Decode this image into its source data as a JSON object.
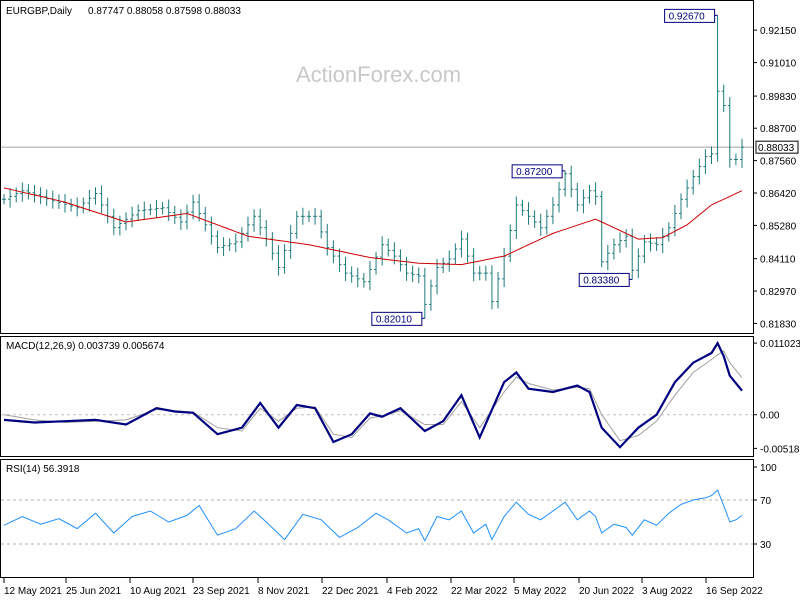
{
  "colors": {
    "bars": "#1f7a7a",
    "ma": "#cc0000",
    "macd": "#000080",
    "signal": "#a0a0a0",
    "rsi": "#1e90ff",
    "grid": "#808080",
    "callout": "#000080"
  },
  "watermark": "ActionForex.com",
  "chart_data": [
    {
      "type": "ohlc",
      "title": "EURGBP,Daily",
      "ohlc_label": "0.87747 0.88058 0.87598 0.88033",
      "last_price": "0.88033",
      "ylim": [
        0.816,
        0.93
      ],
      "yticks": [
        "0.92150",
        "0.91010",
        "0.89830",
        "0.88700",
        "0.87560",
        "0.86420",
        "0.85280",
        "0.84110",
        "0.82970",
        "0.81830"
      ],
      "xticks": [
        "12 May 2021",
        "25 Jun 2021",
        "10 Aug 2021",
        "23 Sep 2021",
        "8 Nov 2021",
        "22 Dec 2021",
        "4 Feb 2022",
        "22 Mar 2022",
        "5 May 2022",
        "20 Jun 2022",
        "3 Aug 2022",
        "16 Sep 2022"
      ],
      "annotations": [
        {
          "label": "0.92670",
          "bar": 117,
          "price": 0.9267
        },
        {
          "label": "0.87200",
          "bar": 92,
          "price": 0.872
        },
        {
          "label": "0.82010",
          "bar": 69,
          "price": 0.8201
        },
        {
          "label": "0.83380",
          "bar": 103,
          "price": 0.8338
        }
      ],
      "close_keypoints": [
        [
          0,
          0.862
        ],
        [
          3,
          0.865
        ],
        [
          8,
          0.8615
        ],
        [
          12,
          0.859
        ],
        [
          15,
          0.864
        ],
        [
          18,
          0.852
        ],
        [
          22,
          0.858
        ],
        [
          26,
          0.859
        ],
        [
          29,
          0.854
        ],
        [
          31,
          0.861
        ],
        [
          35,
          0.845
        ],
        [
          38,
          0.847
        ],
        [
          41,
          0.856
        ],
        [
          43,
          0.848
        ],
        [
          45,
          0.838
        ],
        [
          48,
          0.856
        ],
        [
          51,
          0.856
        ],
        [
          53,
          0.845
        ],
        [
          56,
          0.836
        ],
        [
          59,
          0.833
        ],
        [
          62,
          0.846
        ],
        [
          64,
          0.842
        ],
        [
          66,
          0.836
        ],
        [
          68,
          0.835
        ],
        [
          69,
          0.825
        ],
        [
          71,
          0.838
        ],
        [
          73,
          0.841
        ],
        [
          75,
          0.848
        ],
        [
          77,
          0.836
        ],
        [
          79,
          0.836
        ],
        [
          80,
          0.826
        ],
        [
          82,
          0.842
        ],
        [
          84,
          0.86
        ],
        [
          86,
          0.856
        ],
        [
          88,
          0.852
        ],
        [
          90,
          0.86
        ],
        [
          92,
          0.871
        ],
        [
          94,
          0.86
        ],
        [
          96,
          0.865
        ],
        [
          97,
          0.863
        ],
        [
          98,
          0.84
        ],
        [
          100,
          0.846
        ],
        [
          102,
          0.849
        ],
        [
          103,
          0.837
        ],
        [
          105,
          0.847
        ],
        [
          107,
          0.846
        ],
        [
          109,
          0.852
        ],
        [
          111,
          0.862
        ],
        [
          113,
          0.87
        ],
        [
          115,
          0.877
        ],
        [
          116,
          0.878
        ],
        [
          117,
          0.9
        ],
        [
          118,
          0.895
        ],
        [
          119,
          0.876
        ],
        [
          120,
          0.876
        ],
        [
          121,
          0.8803
        ]
      ],
      "ma_keypoints": [
        [
          0,
          0.866
        ],
        [
          10,
          0.861
        ],
        [
          20,
          0.854
        ],
        [
          30,
          0.857
        ],
        [
          40,
          0.849
        ],
        [
          50,
          0.846
        ],
        [
          60,
          0.8415
        ],
        [
          68,
          0.8395
        ],
        [
          75,
          0.839
        ],
        [
          82,
          0.842
        ],
        [
          90,
          0.85
        ],
        [
          97,
          0.855
        ],
        [
          100,
          0.852
        ],
        [
          104,
          0.848
        ],
        [
          108,
          0.8485
        ],
        [
          112,
          0.853
        ],
        [
          116,
          0.86
        ],
        [
          121,
          0.865
        ]
      ]
    },
    {
      "type": "line",
      "title": "MACD(12,26,9) 0.003739 0.005674",
      "ylim": [
        -0.0062,
        0.0115
      ],
      "yticks": [
        "0.011023",
        "0.00",
        "-0.005182"
      ],
      "series": [
        {
          "points": [
            [
              0,
              -0.0008
            ],
            [
              5,
              -0.0012
            ],
            [
              10,
              -0.001
            ],
            [
              15,
              -0.0008
            ],
            [
              20,
              -0.0015
            ],
            [
              25,
              0.001
            ],
            [
              28,
              0.0005
            ],
            [
              31,
              0.0003
            ],
            [
              35,
              -0.003
            ],
            [
              39,
              -0.002
            ],
            [
              42,
              0.0018
            ],
            [
              45,
              -0.002
            ],
            [
              48,
              0.0015
            ],
            [
              51,
              0.001
            ],
            [
              54,
              -0.0042
            ],
            [
              57,
              -0.003
            ],
            [
              60,
              0.0002
            ],
            [
              62,
              -0.0003
            ],
            [
              65,
              0.001
            ],
            [
              69,
              -0.0025
            ],
            [
              72,
              -0.001
            ],
            [
              75,
              0.003
            ],
            [
              78,
              -0.0035
            ],
            [
              82,
              0.005
            ],
            [
              84,
              0.0065
            ],
            [
              86,
              0.004
            ],
            [
              90,
              0.0035
            ],
            [
              94,
              0.0045
            ],
            [
              96,
              0.0035
            ],
            [
              98,
              -0.002
            ],
            [
              101,
              -0.005
            ],
            [
              104,
              -0.002
            ],
            [
              107,
              0.0
            ],
            [
              110,
              0.005
            ],
            [
              113,
              0.008
            ],
            [
              116,
              0.0095
            ],
            [
              117,
              0.011
            ],
            [
              118,
              0.009
            ],
            [
              119,
              0.006
            ],
            [
              121,
              0.0037
            ]
          ]
        },
        {
          "points": [
            [
              0,
              0.0
            ],
            [
              5,
              -0.0008
            ],
            [
              10,
              -0.0012
            ],
            [
              15,
              -0.001
            ],
            [
              20,
              -0.0008
            ],
            [
              25,
              0.0008
            ],
            [
              28,
              0.0006
            ],
            [
              31,
              0.0004
            ],
            [
              35,
              -0.002
            ],
            [
              39,
              -0.0025
            ],
            [
              42,
              0.001
            ],
            [
              45,
              -0.001
            ],
            [
              48,
              0.001
            ],
            [
              51,
              0.0012
            ],
            [
              54,
              -0.003
            ],
            [
              57,
              -0.0035
            ],
            [
              60,
              -0.0005
            ],
            [
              62,
              -0.0002
            ],
            [
              65,
              0.0006
            ],
            [
              69,
              -0.0015
            ],
            [
              72,
              -0.0015
            ],
            [
              75,
              0.002
            ],
            [
              78,
              -0.002
            ],
            [
              82,
              0.0035
            ],
            [
              84,
              0.0058
            ],
            [
              86,
              0.0048
            ],
            [
              90,
              0.0038
            ],
            [
              94,
              0.0042
            ],
            [
              96,
              0.004
            ],
            [
              98,
              0.0
            ],
            [
              101,
              -0.004
            ],
            [
              104,
              -0.0032
            ],
            [
              107,
              -0.001
            ],
            [
              110,
              0.003
            ],
            [
              113,
              0.0065
            ],
            [
              116,
              0.0085
            ],
            [
              117,
              0.0092
            ],
            [
              118,
              0.0098
            ],
            [
              119,
              0.008
            ],
            [
              121,
              0.0057
            ]
          ]
        }
      ]
    },
    {
      "type": "line",
      "title": "RSI(14) 56.3918",
      "ylim": [
        0,
        100
      ],
      "yticks": [
        "100",
        "70",
        "30"
      ],
      "guides": [
        70,
        30
      ],
      "series": [
        {
          "points": [
            [
              0,
              47
            ],
            [
              3,
              55
            ],
            [
              6,
              48
            ],
            [
              9,
              53
            ],
            [
              12,
              44
            ],
            [
              15,
              58
            ],
            [
              18,
              40
            ],
            [
              21,
              55
            ],
            [
              24,
              60
            ],
            [
              27,
              50
            ],
            [
              30,
              56
            ],
            [
              32,
              65
            ],
            [
              35,
              38
            ],
            [
              38,
              44
            ],
            [
              41,
              60
            ],
            [
              43,
              50
            ],
            [
              46,
              34
            ],
            [
              49,
              57
            ],
            [
              52,
              52
            ],
            [
              55,
              36
            ],
            [
              58,
              45
            ],
            [
              61,
              58
            ],
            [
              63,
              52
            ],
            [
              66,
              40
            ],
            [
              68,
              44
            ],
            [
              69,
              33
            ],
            [
              71,
              55
            ],
            [
              73,
              52
            ],
            [
              75,
              60
            ],
            [
              77,
              40
            ],
            [
              79,
              48
            ],
            [
              80,
              34
            ],
            [
              82,
              55
            ],
            [
              84,
              68
            ],
            [
              86,
              57
            ],
            [
              88,
              52
            ],
            [
              90,
              60
            ],
            [
              92,
              68
            ],
            [
              94,
              52
            ],
            [
              96,
              60
            ],
            [
              97,
              55
            ],
            [
              98,
              40
            ],
            [
              100,
              48
            ],
            [
              102,
              45
            ],
            [
              103,
              38
            ],
            [
              105,
              52
            ],
            [
              107,
              47
            ],
            [
              109,
              58
            ],
            [
              111,
              66
            ],
            [
              113,
              70
            ],
            [
              115,
              72
            ],
            [
              116,
              74
            ],
            [
              117,
              79
            ],
            [
              118,
              65
            ],
            [
              119,
              50
            ],
            [
              120,
              52
            ],
            [
              121,
              56
            ]
          ]
        }
      ]
    }
  ]
}
